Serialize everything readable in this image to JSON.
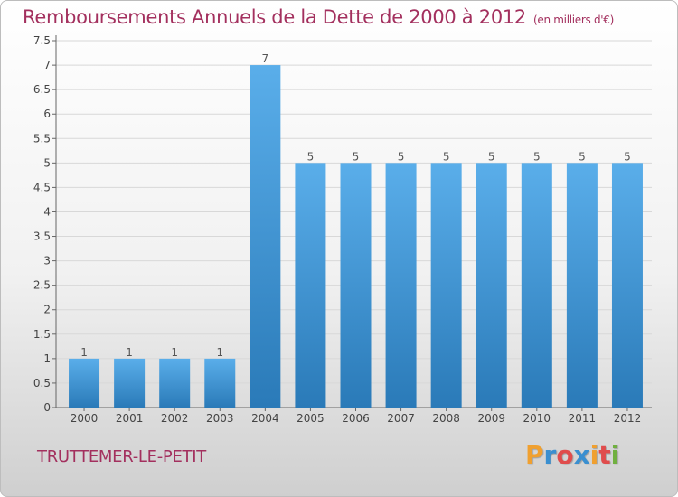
{
  "title": "Remboursements Annuels de la Dette de 2000 à 2012",
  "title_unit": "(en milliers d'€)",
  "commune": "TRUTTEMER-LE-PETIT",
  "logo": {
    "text": "Proxiti",
    "letters": [
      "P",
      "r",
      "o",
      "x",
      "i",
      "t",
      "i"
    ],
    "colors": [
      "#f0a030",
      "#3a8fd0",
      "#e04c4c",
      "#3a8fd0",
      "#f0a030",
      "#e04c4c",
      "#70b040"
    ]
  },
  "colors": {
    "bar_top": "#5aaeea",
    "bar_bottom": "#2a7ab8",
    "title": "#a3305e",
    "grid": "#d8d8d8"
  },
  "chart_data": {
    "type": "bar",
    "categories": [
      "2000",
      "2001",
      "2002",
      "2003",
      "2004",
      "2005",
      "2006",
      "2007",
      "2008",
      "2009",
      "2010",
      "2011",
      "2012"
    ],
    "values": [
      1,
      1,
      1,
      1,
      7,
      5,
      5,
      5,
      5,
      5,
      5,
      5,
      5
    ],
    "data_labels": [
      "1",
      "1",
      "1",
      "1",
      "7",
      "5",
      "5",
      "5",
      "5",
      "5",
      "5",
      "5",
      "5"
    ],
    "y_ticks": [
      "0",
      "0.5",
      "1",
      "1.5",
      "2",
      "2.5",
      "3",
      "3.5",
      "4",
      "4.5",
      "5",
      "5.5",
      "6",
      "6.5",
      "7",
      "7.5"
    ],
    "ylim": [
      0,
      7.5
    ],
    "grid": true,
    "legend": "none"
  }
}
